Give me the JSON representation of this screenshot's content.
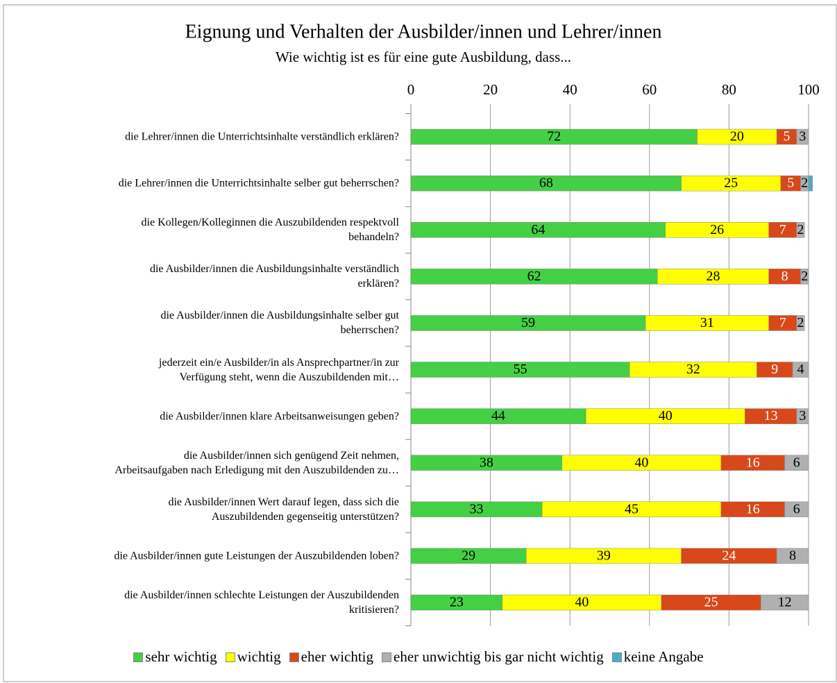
{
  "chart_data": {
    "type": "stacked_bar_horizontal",
    "title": "Eignung und Verhalten der Ausbilder/innen und Lehrer/innen",
    "subtitle": "Wie wichtig ist es für eine gute Ausbildung, dass...",
    "categories": [
      "die Lehrer/innen die Unterrichtsinhalte verständlich erklären?",
      "die Lehrer/innen die Unterrichtsinhalte selber gut beherrschen?",
      "die Kollegen/Kolleginnen die Auszubildenden respektvoll\nbehandeln?",
      "die Ausbilder/innen die Ausbildungsinhalte verständlich\nerklären?",
      "die Ausbilder/innen die Ausbildungsinhalte selber gut\nbeherrschen?",
      "jederzeit ein/e Ausbilder/in als Ansprechpartner/in zur\nVerfügung steht, wenn die Auszubildenden mit…",
      "die Ausbilder/innen klare Arbeitsanweisungen geben?",
      "die Ausbilder/innen sich genügend Zeit nehmen,\nArbeitsaufgaben nach Erledigung mit den Auszubildenden zu…",
      "die Ausbilder/innen Wert darauf legen, dass sich die\nAuszubildenden gegenseitig unterstützen?",
      "die Ausbilder/innen gute Leistungen der Auszubildenden loben?",
      "die Ausbilder/innen schlechte Leistungen der Auszubildenden\nkritisieren?"
    ],
    "series": [
      {
        "name": "sehr wichtig",
        "color": "#45cf45",
        "label_color": "#000000",
        "values": [
          72,
          68,
          64,
          62,
          59,
          55,
          44,
          38,
          33,
          29,
          23
        ]
      },
      {
        "name": "wichtig",
        "color": "#ffff00",
        "label_color": "#000000",
        "values": [
          20,
          25,
          26,
          28,
          31,
          32,
          40,
          40,
          45,
          39,
          40
        ]
      },
      {
        "name": "eher wichtig",
        "color": "#d9481a",
        "label_color": "#ffffff",
        "values": [
          5,
          5,
          7,
          8,
          7,
          9,
          13,
          16,
          16,
          24,
          25
        ]
      },
      {
        "name": "eher unwichtig bis gar nicht wichtig",
        "color": "#b0b0b0",
        "label_color": "#000000",
        "values": [
          3,
          2,
          2,
          2,
          2,
          4,
          3,
          6,
          6,
          8,
          12
        ]
      },
      {
        "name": "keine Angabe",
        "color": "#4aaccc",
        "labels": false,
        "values": [
          0,
          1,
          0,
          0,
          0,
          0,
          0,
          0,
          0,
          0,
          0
        ]
      }
    ],
    "xlim": [
      0,
      100
    ],
    "xticks": [
      0,
      20,
      40,
      60,
      80,
      100
    ],
    "grid": true,
    "legend": "bottom"
  }
}
